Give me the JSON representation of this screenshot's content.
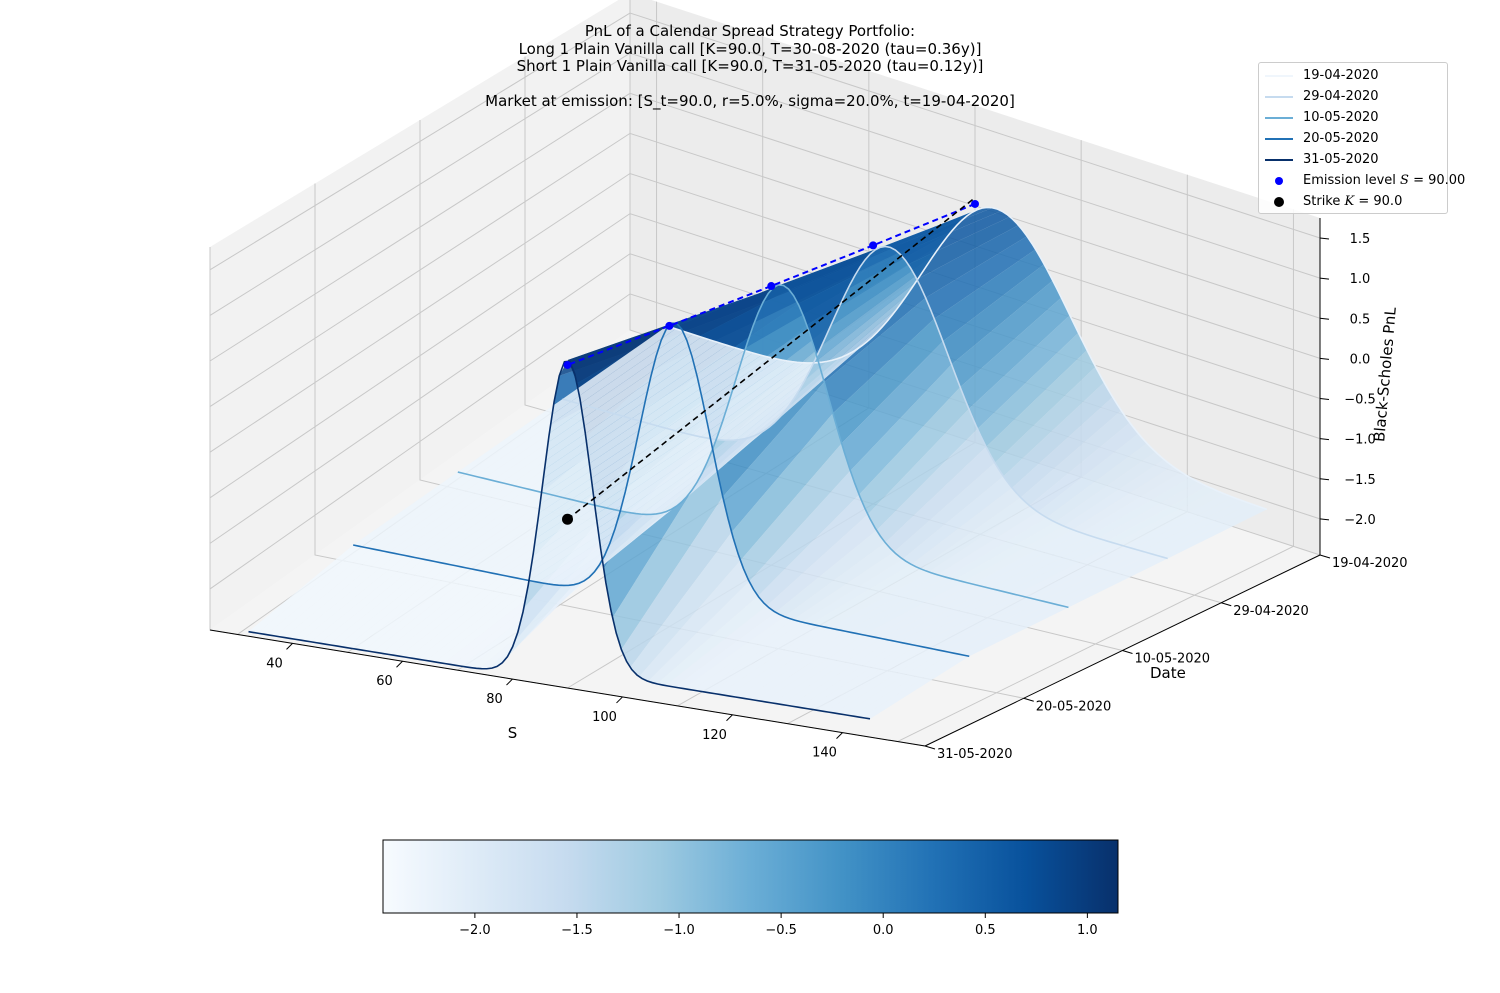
{
  "title_lines": [
    "PnL of a Calendar Spread Strategy Portfolio:",
    "Long 1 Plain Vanilla call [K=90.0, T=30-08-2020 (tau=0.36y)]",
    "Short 1 Plain Vanilla call [K=90.0, T=31-05-2020 (tau=0.12y)]",
    "",
    "Market at emission: [S_t=90.0, r=5.0%, sigma=20.0%, t=19-04-2020]"
  ],
  "chart_data": {
    "type": "surface",
    "xlabel": "S",
    "ylabel": "Date",
    "zlabel": "Black-Scholes PnL",
    "x_ticks": [
      40,
      60,
      80,
      100,
      120,
      140
    ],
    "y_ticks": [
      "19-04-2020",
      "29-04-2020",
      "10-05-2020",
      "20-05-2020",
      "31-05-2020"
    ],
    "z_ticks": [
      1.5,
      1.0,
      0.5,
      0.0,
      -0.5,
      -1.0,
      -1.5,
      -2.0
    ],
    "xlim": [
      25,
      155
    ],
    "zlim": [
      -2.45,
      1.75
    ],
    "colormap": "Blues",
    "colorbar": {
      "ticks": [
        -2.0,
        -1.5,
        -1.0,
        -0.5,
        0.0,
        0.5,
        1.0
      ],
      "labels": [
        "−2.0",
        "−1.5",
        "−1.0",
        "−0.5",
        "0.0",
        "0.5",
        "1.0"
      ],
      "range": [
        -2.45,
        1.15
      ]
    },
    "series": [
      {
        "name": "19-04-2020",
        "color": "#f7fbff",
        "date_index": 0,
        "peak_S": 94,
        "peak_pnl": 0.55,
        "width": 14,
        "low_pnl": -2.25
      },
      {
        "name": "29-04-2020",
        "color": "#c6dbef",
        "date_index": 1,
        "peak_S": 93,
        "peak_pnl": 0.7,
        "width": 11,
        "low_pnl": -2.25
      },
      {
        "name": "10-05-2020",
        "color": "#6baed6",
        "date_index": 2,
        "peak_S": 92,
        "peak_pnl": 0.85,
        "width": 8.5,
        "low_pnl": -2.25
      },
      {
        "name": "20-05-2020",
        "color": "#2171b5",
        "date_index": 3,
        "peak_S": 91,
        "peak_pnl": 1.0,
        "width": 6.5,
        "low_pnl": -2.25
      },
      {
        "name": "31-05-2020",
        "color": "#08306b",
        "date_index": 4,
        "peak_S": 90,
        "peak_pnl": 1.15,
        "width": 4.5,
        "low_pnl": -2.4
      }
    ],
    "emission_level": {
      "label": "Emission level S = 90.00",
      "S": 90.0,
      "color": "#0000ff"
    },
    "strike": {
      "label": "Strike K = 90.0",
      "K": 90.0,
      "color": "#000000"
    },
    "legend_position": "top-right"
  },
  "legend": {
    "items": [
      {
        "label": "19-04-2020",
        "color": "#f7fbff",
        "kind": "line"
      },
      {
        "label": "29-04-2020",
        "color": "#c6dbef",
        "kind": "line"
      },
      {
        "label": "10-05-2020",
        "color": "#6baed6",
        "kind": "line"
      },
      {
        "label": "20-05-2020",
        "color": "#2171b5",
        "kind": "line"
      },
      {
        "label": "31-05-2020",
        "color": "#08306b",
        "kind": "line"
      }
    ],
    "emission_prefix": "Emission level ",
    "emission_var": "S",
    "emission_suffix": " = 90.00",
    "strike_prefix": "Strike ",
    "strike_var": "K",
    "strike_suffix": " = 90.0"
  }
}
